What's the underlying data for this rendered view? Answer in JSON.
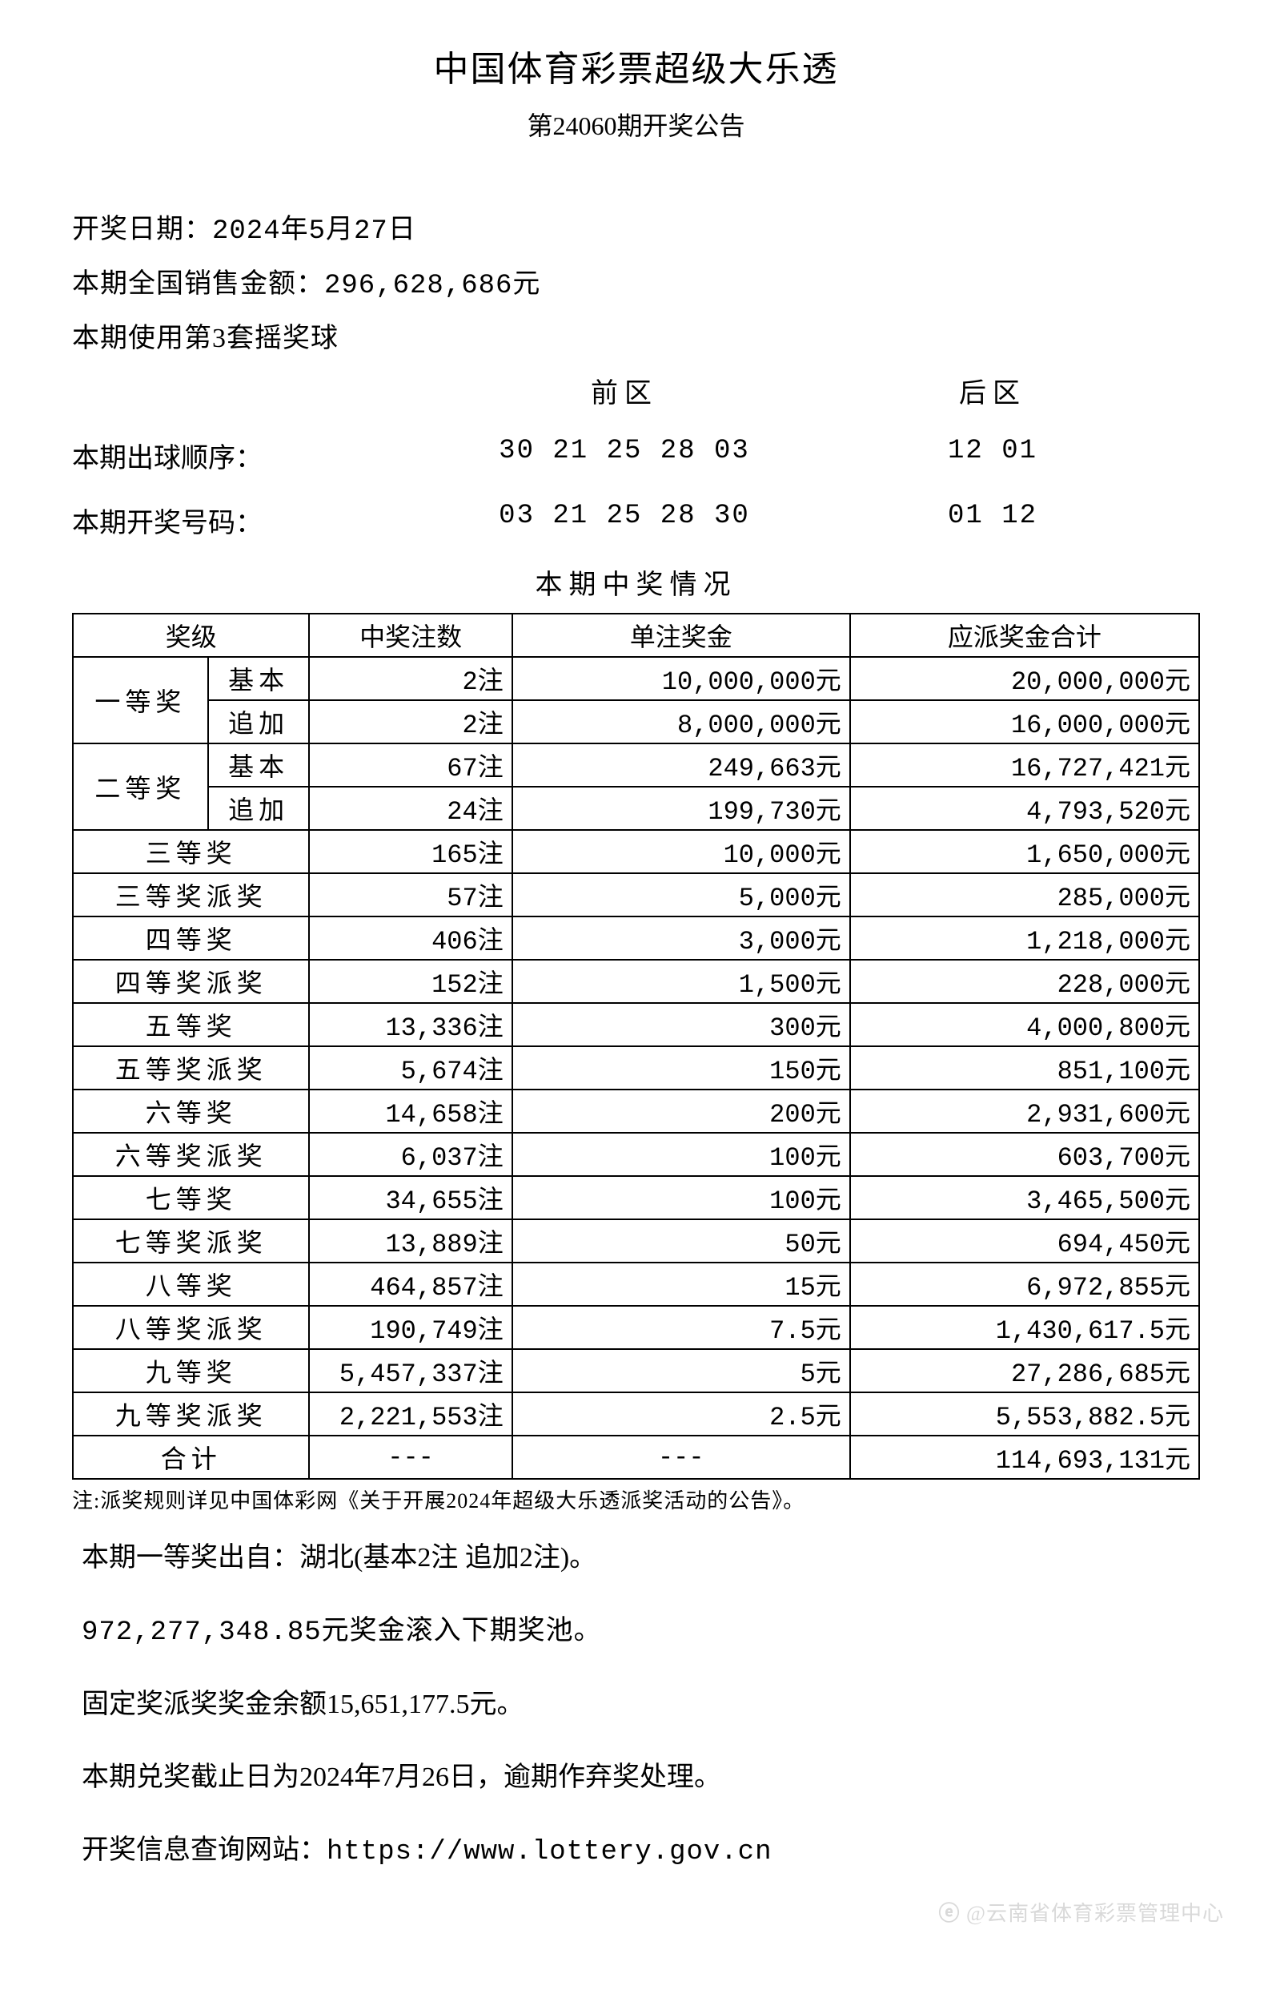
{
  "header": {
    "title": "中国体育彩票超级大乐透",
    "subtitle": "第24060期开奖公告"
  },
  "info": {
    "draw_date_label": "开奖日期：",
    "draw_date_value": "2024年5月27日",
    "sales_label": "本期全国销售金额：",
    "sales_value": "296,628,686元",
    "ballset": "本期使用第3套摇奖球"
  },
  "zones": {
    "front_label": "前区",
    "back_label": "后区",
    "draw_order_label": "本期出球顺序：",
    "draw_order_front": "30 21 25 28 03",
    "draw_order_back": "12 01",
    "winning_label": "本期开奖号码：",
    "winning_front": "03 21 25 28 30",
    "winning_back": "01 12"
  },
  "prize_section_title": "本期中奖情况",
  "table": {
    "headers": {
      "level": "奖级",
      "count": "中奖注数",
      "unit": "单注奖金",
      "total": "应派奖金合计"
    },
    "grouped": [
      {
        "level": "一等奖",
        "subs": [
          {
            "sub": "基本",
            "count": "2注",
            "unit": "10,000,000元",
            "total": "20,000,000元"
          },
          {
            "sub": "追加",
            "count": "2注",
            "unit": "8,000,000元",
            "total": "16,000,000元"
          }
        ]
      },
      {
        "level": "二等奖",
        "subs": [
          {
            "sub": "基本",
            "count": "67注",
            "unit": "249,663元",
            "total": "16,727,421元"
          },
          {
            "sub": "追加",
            "count": "24注",
            "unit": "199,730元",
            "total": "4,793,520元"
          }
        ]
      }
    ],
    "simple": [
      {
        "level": "三等奖",
        "count": "165注",
        "unit": "10,000元",
        "total": "1,650,000元"
      },
      {
        "level": "三等奖派奖",
        "count": "57注",
        "unit": "5,000元",
        "total": "285,000元"
      },
      {
        "level": "四等奖",
        "count": "406注",
        "unit": "3,000元",
        "total": "1,218,000元"
      },
      {
        "level": "四等奖派奖",
        "count": "152注",
        "unit": "1,500元",
        "total": "228,000元"
      },
      {
        "level": "五等奖",
        "count": "13,336注",
        "unit": "300元",
        "total": "4,000,800元"
      },
      {
        "level": "五等奖派奖",
        "count": "5,674注",
        "unit": "150元",
        "total": "851,100元"
      },
      {
        "level": "六等奖",
        "count": "14,658注",
        "unit": "200元",
        "total": "2,931,600元"
      },
      {
        "level": "六等奖派奖",
        "count": "6,037注",
        "unit": "100元",
        "total": "603,700元"
      },
      {
        "level": "七等奖",
        "count": "34,655注",
        "unit": "100元",
        "total": "3,465,500元"
      },
      {
        "level": "七等奖派奖",
        "count": "13,889注",
        "unit": "50元",
        "total": "694,450元"
      },
      {
        "level": "八等奖",
        "count": "464,857注",
        "unit": "15元",
        "total": "6,972,855元"
      },
      {
        "level": "八等奖派奖",
        "count": "190,749注",
        "unit": "7.5元",
        "total": "1,430,617.5元"
      },
      {
        "level": "九等奖",
        "count": "5,457,337注",
        "unit": "5元",
        "total": "27,286,685元"
      },
      {
        "level": "九等奖派奖",
        "count": "2,221,553注",
        "unit": "2.5元",
        "total": "5,553,882.5元"
      }
    ],
    "total_row": {
      "label": "合计",
      "count": "---",
      "unit": "---",
      "total": "114,693,131元"
    }
  },
  "note": "注:派奖规则详见中国体彩网《关于开展2024年超级大乐透派奖活动的公告》。",
  "footer_lines": {
    "l1": "本期一等奖出自：湖北(基本2注 追加2注)。",
    "l2": "972,277,348.85元奖金滚入下期奖池。",
    "l3": "固定奖派奖奖金余额15,651,177.5元。",
    "l4": "本期兑奖截止日为2024年7月26日，逾期作弃奖处理。",
    "l5_label": "开奖信息查询网站：",
    "l5_url": "https://www.lottery.gov.cn"
  },
  "watermark": "@云南省体育彩票管理中心"
}
